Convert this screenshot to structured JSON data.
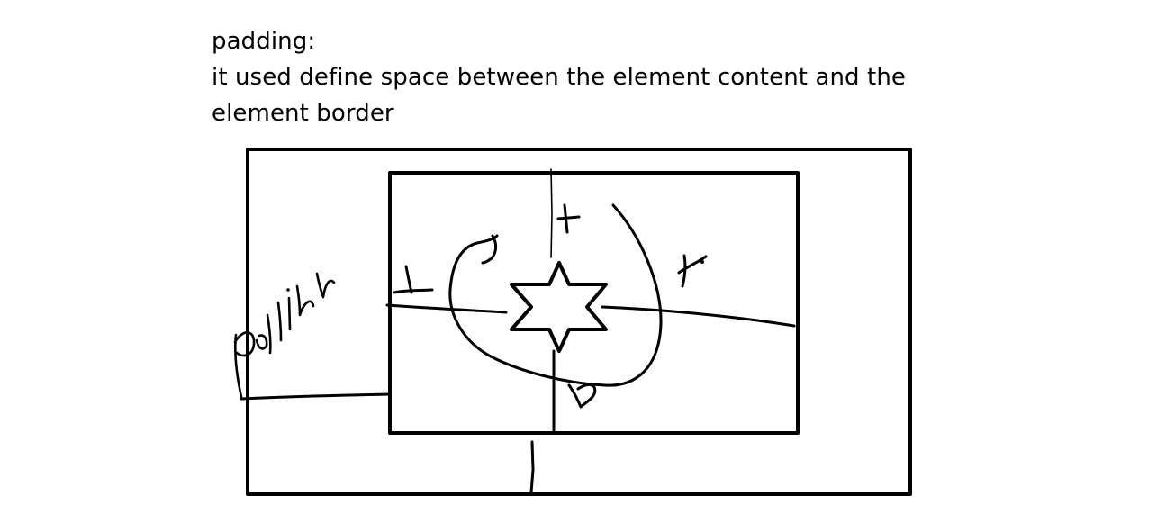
{
  "notes": {
    "heading": "padding:",
    "line1": "it used define space between the element content and the",
    "line2": "element border"
  },
  "diagram": {
    "stroke_color": "#000000",
    "background": "#ffffff",
    "handwritten_labels": [
      "padding",
      "t",
      "l",
      "r",
      "b"
    ]
  }
}
